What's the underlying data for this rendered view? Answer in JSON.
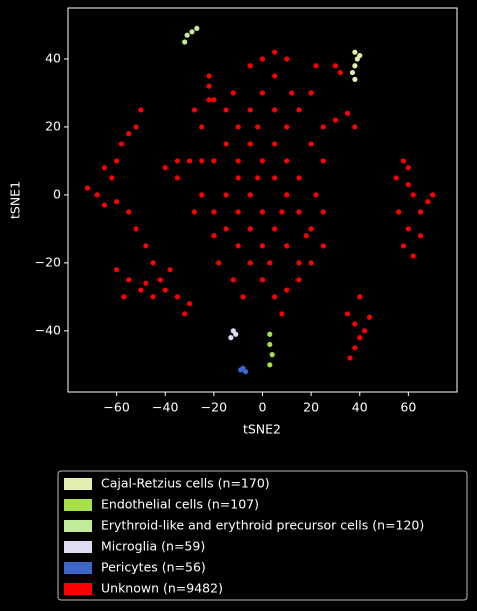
{
  "chart_data": {
    "type": "scatter",
    "x_label": "tSNE2",
    "y_label": "tSNE1",
    "xlim": [
      -80,
      80
    ],
    "ylim": [
      -58,
      55
    ],
    "xticks": [
      {
        "value": -60,
        "label": "−60"
      },
      {
        "value": -40,
        "label": "−40"
      },
      {
        "value": -20,
        "label": "−20"
      },
      0,
      20,
      40,
      60
    ],
    "yticks": [
      {
        "value": -40,
        "label": "−40"
      },
      {
        "value": -20,
        "label": "−20"
      },
      0,
      20,
      40
    ],
    "series": [
      {
        "name": "Cajal-Retzius cells (n=170)",
        "color": "#dff0b0",
        "x": [
          38,
          39,
          38,
          37,
          40,
          38
        ],
        "y": [
          42,
          40,
          38,
          36,
          41,
          34
        ]
      },
      {
        "name": "Endothelial cells (n=107)",
        "color": "#a6e04a",
        "x": [
          3,
          3,
          4,
          3
        ],
        "y": [
          -41,
          -44,
          -47,
          -50
        ]
      },
      {
        "name": "Erythroid-like and erythroid precursor cells (n=120)",
        "color": "#c3ec9a",
        "x": [
          -32,
          -31,
          -29,
          -27
        ],
        "y": [
          45,
          47,
          48,
          49
        ]
      },
      {
        "name": "Microglia (n=59)",
        "color": "#dcdcf2",
        "x": [
          -13,
          -11,
          -12
        ],
        "y": [
          -42,
          -41,
          -40
        ]
      },
      {
        "name": "Pericytes (n=56)",
        "color": "#3f66c8",
        "x": [
          -8,
          -7,
          -9
        ],
        "y": [
          -51,
          -52,
          -51.5
        ]
      },
      {
        "name": "Unknown (n=9482)",
        "color": "#ff0000",
        "x": [
          -20,
          -15,
          -10,
          -5,
          0,
          5,
          5,
          0,
          10,
          -5,
          -15,
          -25,
          -30,
          -35,
          -25,
          -20,
          -15,
          -10,
          -5,
          0,
          5,
          10,
          15,
          20,
          25,
          20,
          15,
          10,
          5,
          0,
          -5,
          -10,
          -5,
          0,
          5,
          10,
          15,
          0,
          -5,
          -10,
          -15,
          -10,
          5,
          10,
          15,
          20,
          25,
          22,
          25,
          15,
          10,
          20,
          25,
          5,
          -2,
          12,
          -18,
          -12,
          8,
          -25,
          -35,
          -40,
          -28,
          -22,
          -20,
          -12,
          22,
          30,
          35,
          38,
          -8,
          3,
          -2,
          8,
          18,
          -20,
          -28,
          -72,
          -68,
          -65,
          -62,
          -60,
          -58,
          -55,
          -52,
          -50,
          -55,
          -52,
          -48,
          -45,
          -42,
          -60,
          -65,
          -60,
          -55,
          -50,
          -45,
          -40,
          -35,
          -30,
          -32,
          -48,
          -38,
          -57,
          55,
          58,
          60,
          62,
          65,
          68,
          70,
          60,
          58,
          62,
          65,
          56,
          60,
          35,
          38,
          40,
          42,
          44,
          38,
          40,
          36,
          -22,
          -22,
          30,
          32
        ],
        "y": [
          10,
          15,
          20,
          25,
          30,
          35,
          42,
          40,
          40,
          38,
          25,
          20,
          10,
          5,
          0,
          -5,
          -10,
          -15,
          -20,
          -25,
          -30,
          -28,
          -25,
          -20,
          -15,
          -10,
          -5,
          0,
          5,
          10,
          15,
          5,
          0,
          -5,
          -10,
          -15,
          -20,
          -15,
          -10,
          -5,
          0,
          10,
          15,
          20,
          25,
          15,
          10,
          0,
          -5,
          5,
          10,
          30,
          20,
          25,
          20,
          30,
          -20,
          -25,
          -35,
          10,
          10,
          8,
          25,
          35,
          28,
          30,
          38,
          22,
          24,
          20,
          -30,
          -20,
          5,
          -5,
          -12,
          -12,
          -5,
          2,
          0,
          -3,
          5,
          10,
          15,
          18,
          20,
          25,
          -5,
          -10,
          -15,
          -20,
          -25,
          -2,
          8,
          -22,
          -25,
          -28,
          -30,
          -28,
          -30,
          -32,
          -35,
          -26,
          -22,
          -30,
          5,
          10,
          8,
          0,
          -5,
          -2,
          0,
          -10,
          -15,
          -18,
          -12,
          -5,
          3,
          -35,
          -38,
          -42,
          -40,
          -36,
          -45,
          -30,
          -48,
          32,
          28,
          38,
          36
        ]
      }
    ]
  }
}
